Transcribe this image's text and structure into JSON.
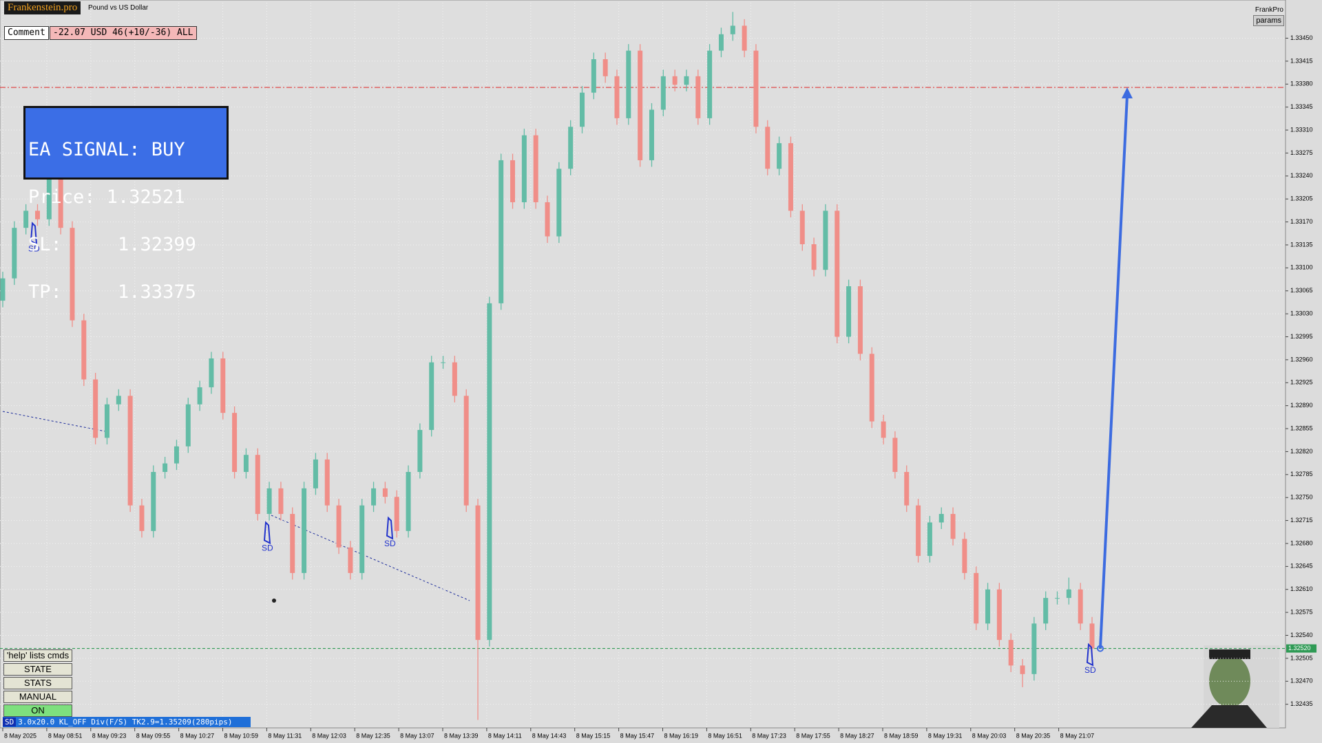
{
  "header": {
    "brand": "Frankenstein.pro",
    "symbol": "Pound vs US Dollar",
    "profile": "FrankPro",
    "params": "params"
  },
  "comment": {
    "label": "Comment",
    "value": "-22.07 USD 46(+10/-36) ALL"
  },
  "signal_box": {
    "title": "EA SIGNAL: BUY",
    "lines": [
      "Price: 1.32521",
      "SL:     1.32399",
      "TP:     1.33375"
    ]
  },
  "buttons": [
    "'help' lists cmds",
    "STATE",
    "STATS",
    "MANUAL",
    "ON"
  ],
  "status": {
    "tag": "SD",
    "text": "3.0x20.0 KL_OFF Div(F/S) TK2.9=1.35209(280pips)"
  },
  "chart_data": {
    "type": "candlestick",
    "open": [
      1.3305,
      1.33084,
      1.33161,
      1.33187,
      1.33174,
      1.33238,
      1.33161,
      1.3302,
      1.3293,
      1.32841,
      1.32892,
      1.32905,
      1.32738,
      1.32699,
      1.32789,
      1.32802,
      1.32828,
      1.32892,
      1.32918,
      1.32962,
      1.32879,
      1.32789,
      1.32815,
      1.32725,
      1.32764,
      1.32725,
      1.32635,
      1.32764,
      1.32808,
      1.32738,
      1.32674,
      1.32635,
      1.32738,
      1.32764,
      1.32751,
      1.32699,
      1.32789,
      1.32853,
      1.32956,
      1.32956,
      1.32905,
      1.32738,
      1.32533,
      1.33046,
      1.33264,
      1.332,
      1.33302,
      1.332,
      1.33148,
      1.33251,
      1.33315,
      1.33367,
      1.33418,
      1.33392,
      1.33328,
      1.33431,
      1.33264,
      1.33341,
      1.33392,
      1.33379,
      1.33392,
      1.33328,
      1.33431,
      1.33456,
      1.33469,
      1.33431,
      1.33315,
      1.33251,
      1.3329,
      1.33187,
      1.33136,
      1.33097,
      1.33187,
      1.32995,
      1.33072,
      1.32969,
      1.32866,
      1.32841,
      1.32789,
      1.32738,
      1.32661,
      1.32712,
      1.32725,
      1.32687,
      1.32635,
      1.32558,
      1.3261,
      1.32533,
      1.32494,
      1.32481,
      1.32558,
      1.32597,
      1.32597,
      1.3261,
      1.32558
    ],
    "high": [
      1.33094,
      1.33171,
      1.33197,
      1.33197,
      1.33248,
      1.33248,
      1.33171,
      1.3303,
      1.3294,
      1.32902,
      1.32915,
      1.32915,
      1.32748,
      1.32799,
      1.32812,
      1.32838,
      1.32902,
      1.32928,
      1.32972,
      1.32972,
      1.32889,
      1.32825,
      1.32825,
      1.32774,
      1.32774,
      1.32735,
      1.32774,
      1.32818,
      1.32818,
      1.32748,
      1.32684,
      1.32748,
      1.32774,
      1.32774,
      1.32761,
      1.32799,
      1.32863,
      1.32966,
      1.32966,
      1.32966,
      1.32915,
      1.32748,
      1.33056,
      1.33274,
      1.33274,
      1.33312,
      1.33312,
      1.3321,
      1.33261,
      1.33325,
      1.33377,
      1.33428,
      1.33428,
      1.33402,
      1.33441,
      1.33441,
      1.33351,
      1.33402,
      1.33402,
      1.33402,
      1.33402,
      1.33441,
      1.33466,
      1.3349,
      1.33479,
      1.33441,
      1.33325,
      1.333,
      1.333,
      1.33197,
      1.33146,
      1.33197,
      1.33197,
      1.33082,
      1.33082,
      1.32979,
      1.32876,
      1.32851,
      1.32799,
      1.32748,
      1.32722,
      1.32735,
      1.32735,
      1.32697,
      1.32645,
      1.3262,
      1.3262,
      1.32543,
      1.32504,
      1.32568,
      1.32607,
      1.32607,
      1.32628,
      1.3262,
      1.32568
    ],
    "low": [
      1.3304,
      1.33074,
      1.33151,
      1.33164,
      1.33164,
      1.33151,
      1.3301,
      1.3292,
      1.32831,
      1.32831,
      1.32882,
      1.32728,
      1.32689,
      1.32689,
      1.32779,
      1.32792,
      1.32818,
      1.32882,
      1.32908,
      1.32869,
      1.32779,
      1.32779,
      1.32715,
      1.32715,
      1.32715,
      1.32625,
      1.32625,
      1.32754,
      1.32728,
      1.32664,
      1.32625,
      1.32625,
      1.32728,
      1.32741,
      1.32689,
      1.32689,
      1.32779,
      1.32843,
      1.32946,
      1.32895,
      1.32728,
      1.32411,
      1.32523,
      1.33036,
      1.3319,
      1.3319,
      1.3319,
      1.33138,
      1.33138,
      1.33241,
      1.33305,
      1.33357,
      1.33382,
      1.33318,
      1.33318,
      1.33254,
      1.33254,
      1.33331,
      1.33369,
      1.33369,
      1.33318,
      1.33318,
      1.33421,
      1.33446,
      1.33421,
      1.33305,
      1.33241,
      1.33241,
      1.33177,
      1.33126,
      1.33087,
      1.33087,
      1.32985,
      1.32985,
      1.32959,
      1.32856,
      1.32831,
      1.32779,
      1.32728,
      1.32651,
      1.32651,
      1.32702,
      1.32677,
      1.32625,
      1.32548,
      1.32548,
      1.32523,
      1.32484,
      1.32461,
      1.32471,
      1.32548,
      1.32587,
      1.32587,
      1.32548,
      1.3251
    ],
    "close": [
      1.33084,
      1.33161,
      1.33187,
      1.33174,
      1.33238,
      1.33161,
      1.3302,
      1.3293,
      1.32841,
      1.32892,
      1.32905,
      1.32738,
      1.32699,
      1.32789,
      1.32802,
      1.32828,
      1.32892,
      1.32918,
      1.32962,
      1.32879,
      1.32789,
      1.32815,
      1.32725,
      1.32764,
      1.32725,
      1.32635,
      1.32764,
      1.32808,
      1.32738,
      1.32674,
      1.32635,
      1.32738,
      1.32764,
      1.32751,
      1.32699,
      1.32789,
      1.32853,
      1.32956,
      1.32956,
      1.32905,
      1.32738,
      1.32533,
      1.33046,
      1.33264,
      1.332,
      1.33302,
      1.332,
      1.33148,
      1.33251,
      1.33315,
      1.33367,
      1.33418,
      1.33392,
      1.33328,
      1.33431,
      1.33264,
      1.33341,
      1.33392,
      1.33379,
      1.33392,
      1.33328,
      1.33431,
      1.33456,
      1.33469,
      1.33431,
      1.33315,
      1.33251,
      1.3329,
      1.33187,
      1.33136,
      1.33097,
      1.33187,
      1.32995,
      1.33072,
      1.32969,
      1.32866,
      1.32841,
      1.32789,
      1.32738,
      1.32661,
      1.32712,
      1.32725,
      1.32687,
      1.32635,
      1.32558,
      1.3261,
      1.32533,
      1.32494,
      1.32481,
      1.32558,
      1.32597,
      1.32597,
      1.3261,
      1.32558,
      1.3252
    ],
    "up_color": "#63bca6",
    "down_color": "#f08e88",
    "ylim": [
      1.32399,
      1.33504
    ],
    "yticks": [
      1.32435,
      {
        "value": 1.3247,
        "label": "1.32470"
      },
      1.32505,
      {
        "value": 1.3254,
        "label": "1.32540"
      },
      1.32575,
      {
        "value": 1.3261,
        "label": "1.32610"
      },
      1.32645,
      {
        "value": 1.3268,
        "label": "1.32680"
      },
      1.32715,
      {
        "value": 1.3275,
        "label": "1.32750"
      },
      1.32785,
      {
        "value": 1.3282,
        "label": "1.32820"
      },
      1.32855,
      {
        "value": 1.3289,
        "label": "1.32890"
      },
      1.32925,
      {
        "value": 1.3296,
        "label": "1.32960"
      },
      1.32995,
      {
        "value": 1.3303,
        "label": "1.33030"
      },
      1.33065,
      {
        "value": 1.331,
        "label": "1.33100"
      },
      1.33135,
      {
        "value": 1.3317,
        "label": "1.33170"
      },
      1.33205,
      {
        "value": 1.3324,
        "label": "1.33240"
      },
      1.33275,
      {
        "value": 1.3331,
        "label": "1.33310"
      },
      1.33345,
      {
        "value": 1.3338,
        "label": "1.33380"
      },
      1.33415,
      {
        "value": 1.3345,
        "label": "1.33450"
      }
    ],
    "x_labels": [
      "8 May 2025",
      "8 May 08:51",
      "8 May 09:23",
      "8 May 09:55",
      "8 May 10:27",
      "8 May 10:59",
      "8 May 11:31",
      "8 May 12:03",
      "8 May 12:35",
      "8 May 13:07",
      "8 May 13:39",
      "8 May 14:11",
      "8 May 14:43",
      "8 May 15:15",
      "8 May 15:47",
      "8 May 16:19",
      "8 May 16:51",
      "8 May 17:23",
      "8 May 17:55",
      "8 May 18:27",
      "8 May 18:59",
      "8 May 19:31",
      "8 May 20:03",
      "8 May 20:35",
      "8 May 21:07"
    ],
    "grid": true,
    "levels": [
      {
        "value": 1.33375,
        "color": "#e03a3a",
        "style": "dash-dot"
      },
      {
        "value": 1.3252,
        "color": "#2f9a55",
        "style": "dashed",
        "label": "1.32520"
      }
    ],
    "signals": [
      {
        "label": "SD",
        "value": 1.33168
      },
      {
        "label": "SD",
        "value": 1.32712
      },
      {
        "label": "SD",
        "value": 1.32719
      },
      {
        "label": "SD",
        "value": 1.32526
      }
    ],
    "arrow": {
      "from": 1.3252,
      "to": 1.33375,
      "color": "#3c6be0"
    }
  }
}
